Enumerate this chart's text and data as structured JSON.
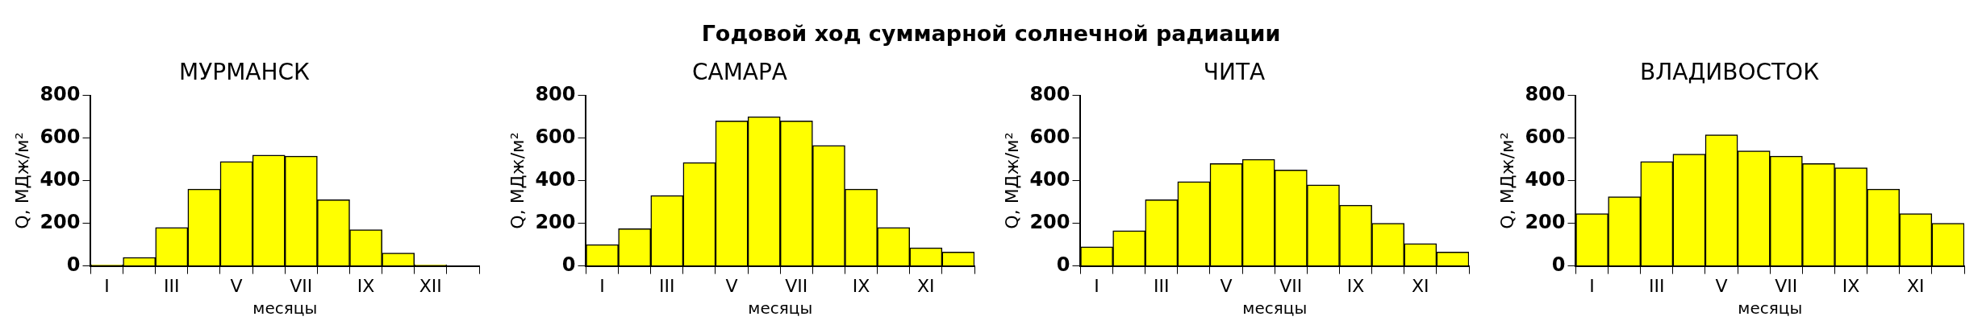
{
  "chart_data": [
    {
      "type": "other",
      "title": "Годовой ход суммарной солнечной радиации"
    },
    {
      "type": "bar",
      "title": "МУРМАНСК",
      "xlabel": "месяцы",
      "ylabel": "Q, МДж/м²",
      "categories": [
        "I",
        null,
        "III",
        null,
        "V",
        null,
        "VII",
        null,
        "IX",
        null,
        "XII",
        null
      ],
      "values": [
        5,
        40,
        180,
        360,
        490,
        520,
        515,
        310,
        170,
        60,
        5,
        null
      ],
      "color": "#ffff00",
      "ylim": [
        0,
        800
      ],
      "yticks": [
        0,
        200,
        400,
        600,
        800
      ],
      "grid": false
    },
    {
      "type": "bar",
      "title": "САМАРА",
      "xlabel": "месяцы",
      "ylabel": "Q, МДж/м²",
      "categories": [
        "I",
        null,
        "III",
        null,
        "V",
        null,
        "VII",
        null,
        "IX",
        null,
        "XI",
        null
      ],
      "values": [
        100,
        175,
        330,
        485,
        680,
        700,
        680,
        565,
        360,
        180,
        85,
        65
      ],
      "color": "#ffff00",
      "ylim": [
        0,
        800
      ],
      "yticks": [
        0,
        200,
        400,
        600,
        800
      ],
      "grid": false
    },
    {
      "type": "bar",
      "title": "ЧИТА",
      "xlabel": "месяцы",
      "ylabel": "Q, МДж/м²",
      "categories": [
        "I",
        null,
        "III",
        null,
        "V",
        null,
        "VII",
        null,
        "IX",
        null,
        "XI",
        null
      ],
      "values": [
        90,
        165,
        310,
        395,
        480,
        500,
        450,
        380,
        285,
        200,
        105,
        65
      ],
      "color": "#ffff00",
      "ylim": [
        0,
        800
      ],
      "yticks": [
        0,
        200,
        400,
        600,
        800
      ],
      "grid": false
    },
    {
      "type": "bar",
      "title": "ВЛАДИВОСТОК",
      "xlabel": "месяцы",
      "ylabel": "Q, МДж/м²",
      "categories": [
        "I",
        null,
        "III",
        null,
        "V",
        null,
        "VII",
        null,
        "IX",
        null,
        "XI",
        null
      ],
      "values": [
        245,
        325,
        490,
        525,
        615,
        540,
        515,
        480,
        460,
        360,
        245,
        200
      ],
      "color": "#ffff00",
      "ylim": [
        0,
        800
      ],
      "yticks": [
        0,
        200,
        400,
        600,
        800
      ],
      "grid": false
    }
  ]
}
